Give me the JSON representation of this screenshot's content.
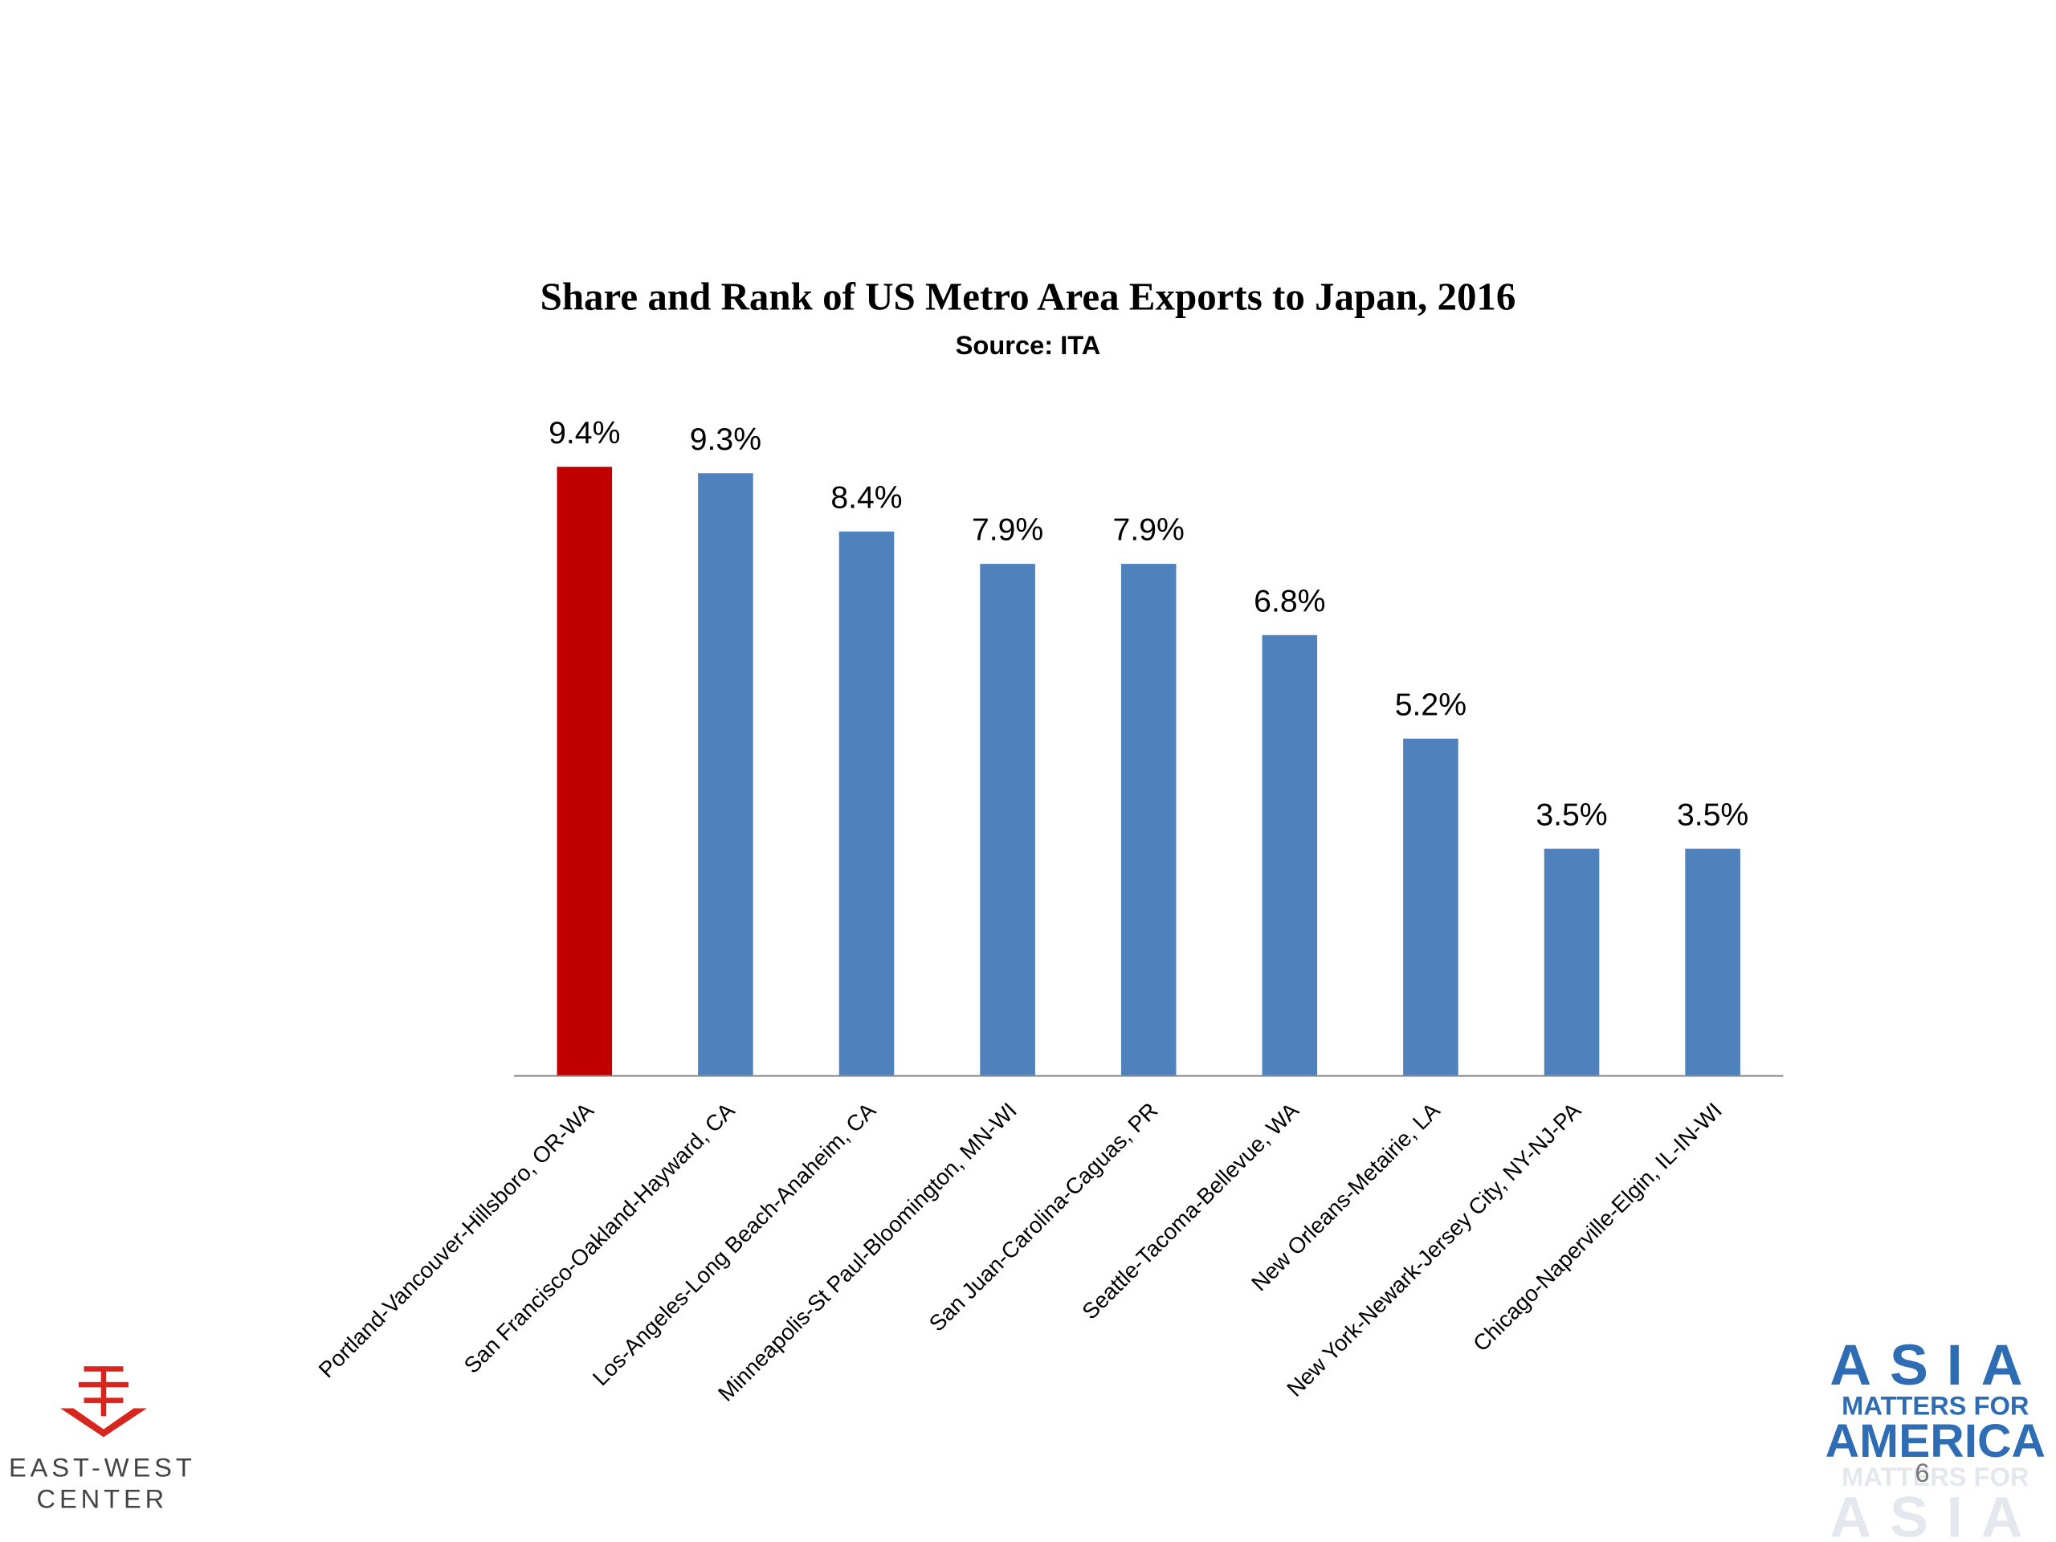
{
  "chart_data": {
    "type": "bar",
    "title": "Share and Rank of US Metro Area Exports to Japan, 2016",
    "subtitle": "Source: ITA",
    "categories": [
      "Portland-Vancouver-Hillsboro, OR-WA",
      "San Francisco-Oakland-Hayward, CA",
      "Los-Angeles-Long Beach-Anaheim, CA",
      "Minneapolis-St Paul-Bloomington, MN-WI",
      "San Juan-Carolina-Caguas, PR",
      "Seattle-Tacoma-Bellevue, WA",
      "New Orleans-Metairie, LA",
      "New York-Newark-Jersey City, NY-NJ-PA",
      "Chicago-Naperville-Elgin, IL-IN-WI"
    ],
    "values": [
      9.4,
      9.3,
      8.4,
      7.9,
      7.9,
      6.8,
      5.2,
      3.5,
      3.5
    ],
    "value_labels": [
      "9.4%",
      "9.3%",
      "8.4%",
      "7.9%",
      "7.9%",
      "6.8%",
      "5.2%",
      "3.5%",
      "3.5%"
    ],
    "colors": [
      "#c00000",
      "#4f81bd",
      "#4f81bd",
      "#4f81bd",
      "#4f81bd",
      "#4f81bd",
      "#4f81bd",
      "#4f81bd",
      "#4f81bd"
    ]
  },
  "logo_left": [
    "EAST-WEST",
    "CENTER"
  ],
  "logo_right": [
    "ASIA",
    "MATTERS FOR",
    "AMERICA"
  ],
  "logo_right_faded": [
    "MATTERS FOR",
    "ASIA"
  ],
  "page_number": "6"
}
